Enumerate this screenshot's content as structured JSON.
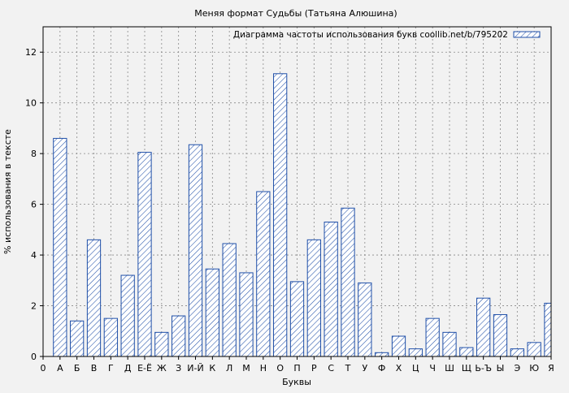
{
  "chart_data": {
    "type": "bar",
    "title": "Меняя формат Судьбы (Татьяна Алюшина)",
    "xlabel": "Буквы",
    "ylabel": "% использования в тексте",
    "legend": {
      "label": "Диаграмма частоты использования букв coollib.net/b/795202",
      "placement": "top-right"
    },
    "ylim": [
      0,
      13
    ],
    "yticks": [
      0,
      2,
      4,
      6,
      8,
      10,
      12
    ],
    "grid": true,
    "x_tick_labels": [
      "0",
      "А",
      "Б",
      "В",
      "Г",
      "Д",
      "Е-Ё",
      "Ж",
      "З",
      "И-Й",
      "К",
      "Л",
      "М",
      "Н",
      "О",
      "П",
      "Р",
      "С",
      "Т",
      "У",
      "Ф",
      "Х",
      "Ц",
      "Ч",
      "Ш",
      "Щ",
      "Ь-Ъ",
      "Ы",
      "Э",
      "Ю",
      "Я"
    ],
    "categories": [
      "А",
      "Б",
      "В",
      "Г",
      "Д",
      "Е-Ё",
      "Ж",
      "З",
      "И-Й",
      "К",
      "Л",
      "М",
      "Н",
      "О",
      "П",
      "Р",
      "С",
      "Т",
      "У",
      "Ф",
      "Х",
      "Ц",
      "Ч",
      "Ш",
      "Щ",
      "Ь-Ъ",
      "Ы",
      "Э",
      "Ю",
      "Я"
    ],
    "values": [
      8.6,
      1.4,
      4.6,
      1.5,
      3.2,
      8.05,
      0.95,
      1.6,
      8.35,
      3.45,
      4.45,
      3.3,
      6.5,
      11.15,
      2.95,
      4.6,
      5.3,
      5.85,
      2.9,
      0.15,
      0.8,
      0.3,
      1.5,
      0.95,
      0.35,
      2.3,
      1.65,
      0.3,
      0.55,
      2.1
    ],
    "bar_stroke": "#1f4fa8",
    "bar_hatch": "#1f4fa8",
    "bar_fill": "#ffffff",
    "background": "#f2f2f2"
  }
}
